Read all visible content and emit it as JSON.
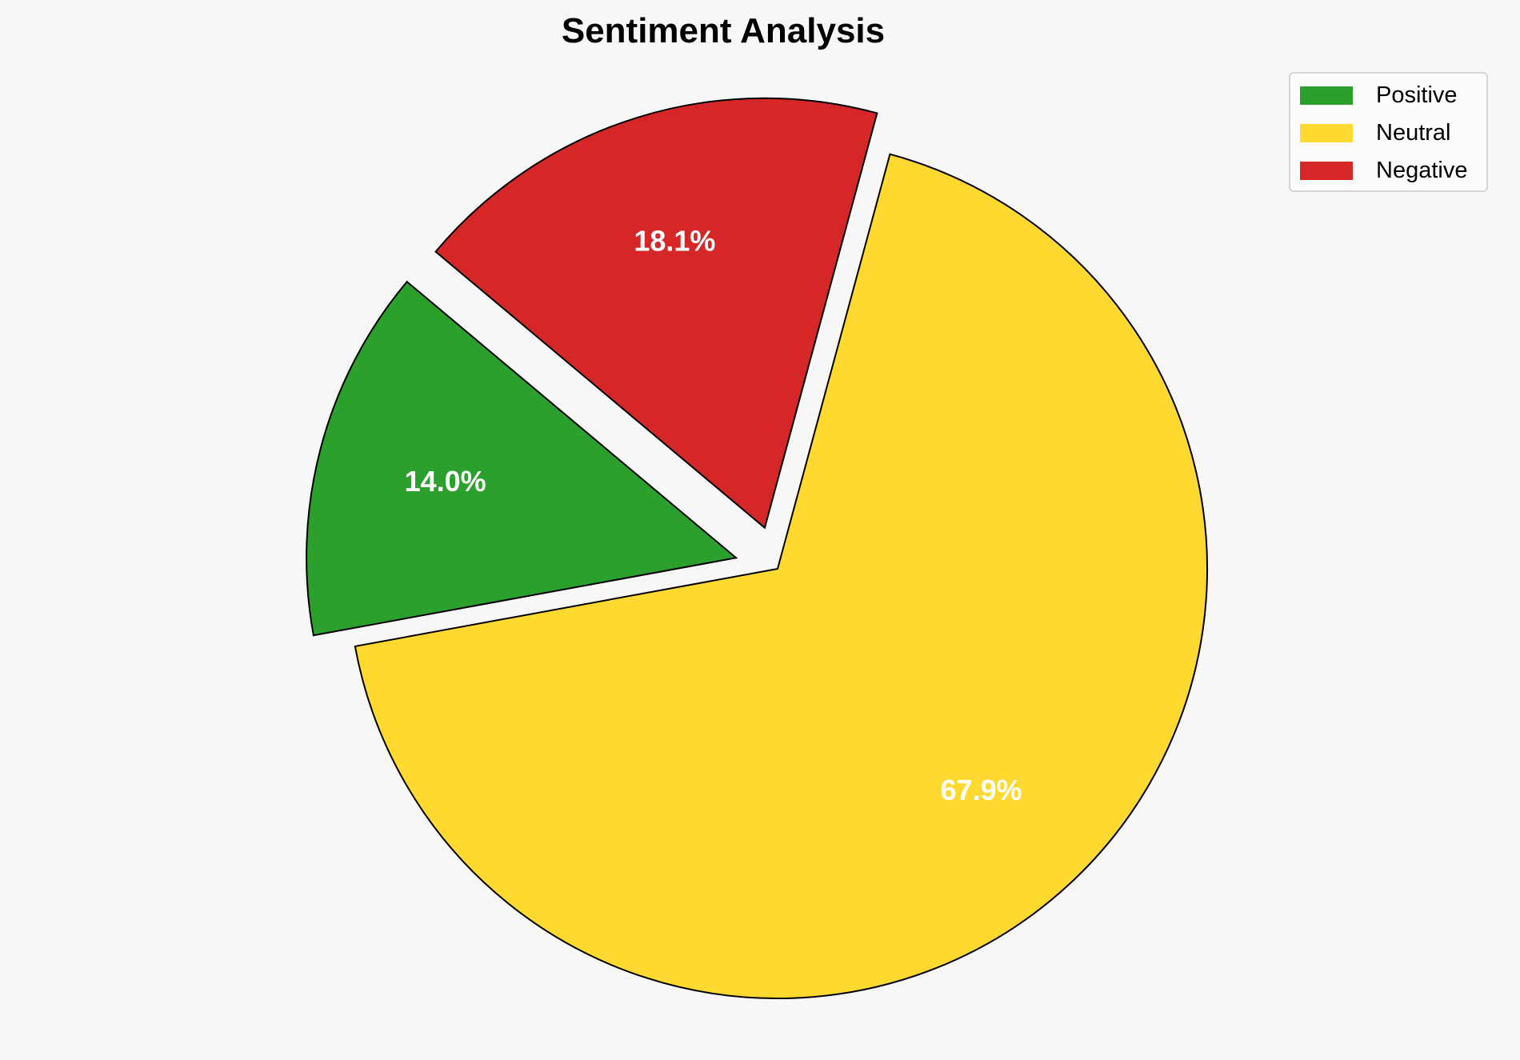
{
  "chart_data": {
    "type": "pie",
    "title": "Sentiment Analysis",
    "categories": [
      "Positive",
      "Neutral",
      "Negative"
    ],
    "values": [
      14.0,
      67.9,
      18.1
    ],
    "labels": [
      "14.0%",
      "67.9%",
      "18.1%"
    ],
    "colors": [
      "#2ca02c",
      "#ffd92f",
      "#d62728"
    ],
    "explode": [
      0.1,
      0,
      0.1
    ],
    "start_angle": 140,
    "legend": {
      "placement": "top-right",
      "entries": [
        "Positive",
        "Neutral",
        "Negative"
      ]
    }
  }
}
